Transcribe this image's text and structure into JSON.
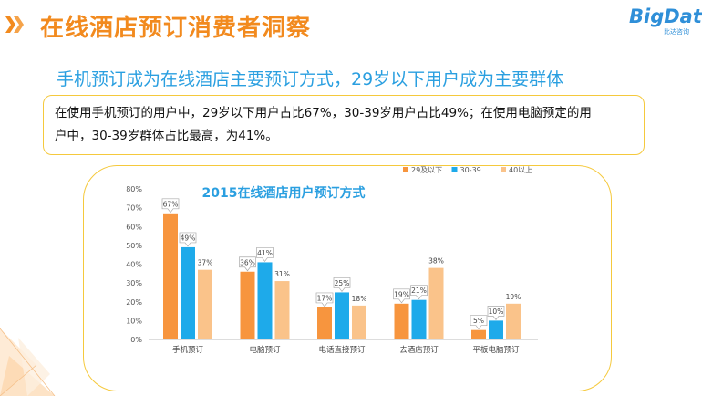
{
  "header": {
    "title": "在线酒店预订消费者洞察",
    "logo_text": "BigData",
    "logo_sub": "比达咨询"
  },
  "subtitle": "手机预订成为在线酒店主要预订方式，29岁以下用户成为主要群体",
  "summary": {
    "line1": "在使用手机预订的用户中，29岁以下用户占比67%，30-39岁用户占比49%；在使用电脑预定的用",
    "line2": "户中，30-39岁群体占比最高，为41%。"
  },
  "chart_data": {
    "type": "bar",
    "title": "2015在线酒店用户预订方式",
    "categories": [
      "手机预订",
      "电脑预订",
      "电话直接预订",
      "去酒店预订",
      "平板电脑预订"
    ],
    "series": [
      {
        "name": "29及以下",
        "color": "#f7953e",
        "values": [
          67,
          36,
          17,
          19,
          5
        ]
      },
      {
        "name": "30-39",
        "color": "#1eaaea",
        "values": [
          49,
          41,
          25,
          21,
          10
        ]
      },
      {
        "name": "40以上",
        "color": "#fac38a",
        "values": [
          37,
          31,
          18,
          38,
          19
        ]
      }
    ],
    "value_unit": "%",
    "ylim": [
      0,
      80
    ],
    "y_ticks": [
      "0%",
      "10%",
      "20%",
      "30%",
      "40%",
      "50%",
      "60%",
      "70%",
      "80%"
    ],
    "legend_position": "top-right",
    "callout_series": [
      "29及以下",
      "30-39"
    ],
    "grid": false
  }
}
